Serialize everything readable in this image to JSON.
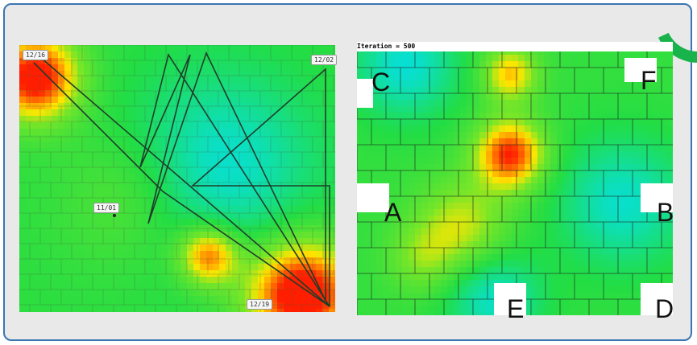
{
  "left_map": {
    "dates": [
      "12/16",
      "12/02",
      "11/01",
      "12/19"
    ]
  },
  "right_map": {
    "iteration_label": "Iteration = 500",
    "corners": [
      "C",
      "F",
      "A",
      "B",
      "E",
      "D"
    ]
  },
  "colors": {
    "frame_border": "#3a74b3",
    "accent_arc": "#18b34a",
    "heat_low": "#00e0ff",
    "heat_mid": "#22dd44",
    "heat_high": "#ff2200"
  }
}
